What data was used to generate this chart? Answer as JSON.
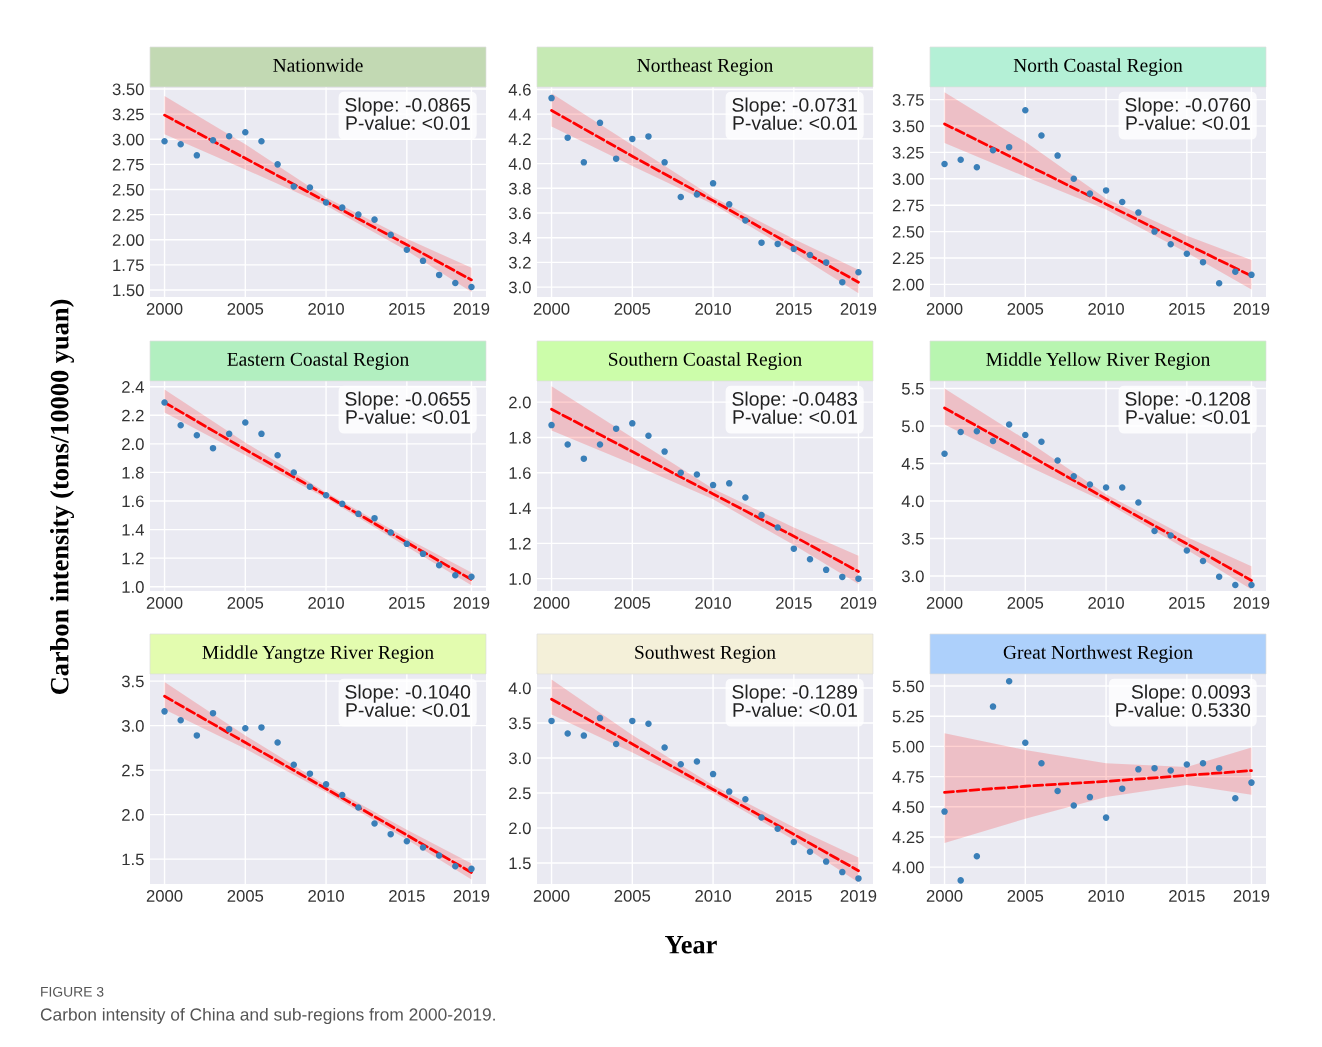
{
  "chart_data": [
    {
      "type": "scatter",
      "title": "Nationwide",
      "x": [
        2000,
        2001,
        2002,
        2003,
        2004,
        2005,
        2006,
        2007,
        2008,
        2009,
        2010,
        2011,
        2012,
        2013,
        2014,
        2015,
        2016,
        2017,
        2018,
        2019
      ],
      "xlim": [
        1999.1,
        2019.9
      ],
      "xticks": [
        2000,
        2005,
        2010,
        2015,
        2019
      ],
      "ylim": [
        1.43,
        3.52
      ],
      "yticks": [
        {
          "value": 1.5,
          "label": "1.50"
        },
        {
          "value": 1.75,
          "label": "1.75"
        },
        {
          "value": 2.0,
          "label": "2.00"
        },
        {
          "value": 2.25,
          "label": "2.25"
        },
        {
          "value": 2.5,
          "label": "2.50"
        },
        {
          "value": 2.75,
          "label": "2.75"
        },
        {
          "value": 3.0,
          "label": "3.00"
        },
        {
          "value": 3.25,
          "label": "3.25"
        },
        {
          "value": 3.5,
          "label": "3.50"
        }
      ],
      "grid": true,
      "marker": "circle",
      "annotations": [
        "Slope: -0.0865\nP-value: <0.01"
      ],
      "series": [
        {
          "color": "#3a7fb8",
          "values": [
            2.98,
            2.95,
            2.84,
            2.99,
            3.03,
            3.07,
            2.98,
            2.75,
            2.53,
            2.52,
            2.37,
            2.32,
            2.25,
            2.2,
            2.05,
            1.9,
            1.79,
            1.65,
            1.57,
            1.53
          ]
        },
        {
          "type": "line",
          "marker": "none",
          "color": "#ff0000",
          "line_style": "dashed",
          "x": [
            2000,
            2005,
            2010,
            2015,
            2019
          ],
          "values": [
            3.24,
            2.81,
            2.38,
            1.95,
            1.6
          ],
          "lower": [
            3.05,
            2.7,
            2.34,
            1.89,
            1.48
          ],
          "upper": [
            3.43,
            2.95,
            2.42,
            2.01,
            1.72
          ]
        }
      ]
    },
    {
      "type": "scatter",
      "title": "Northeast Region",
      "x": [
        2000,
        2001,
        2002,
        2003,
        2004,
        2005,
        2006,
        2007,
        2008,
        2009,
        2010,
        2011,
        2012,
        2013,
        2014,
        2015,
        2016,
        2017,
        2018,
        2019
      ],
      "xlim": [
        1999.1,
        2019.9
      ],
      "xticks": [
        2000,
        2005,
        2010,
        2015,
        2019
      ],
      "ylim": [
        2.92,
        4.62
      ],
      "yticks": [
        {
          "value": 3.0,
          "label": "3.0"
        },
        {
          "value": 3.2,
          "label": "3.2"
        },
        {
          "value": 3.4,
          "label": "3.4"
        },
        {
          "value": 3.6,
          "label": "3.6"
        },
        {
          "value": 3.8,
          "label": "3.8"
        },
        {
          "value": 4.0,
          "label": "4.0"
        },
        {
          "value": 4.2,
          "label": "4.2"
        },
        {
          "value": 4.4,
          "label": "4.4"
        },
        {
          "value": 4.6,
          "label": "4.6"
        }
      ],
      "grid": true,
      "marker": "circle",
      "annotations": [
        "Slope: -0.0731\nP-value: <0.01"
      ],
      "series": [
        {
          "color": "#3a7fb8",
          "values": [
            4.53,
            4.21,
            4.01,
            4.33,
            4.04,
            4.2,
            4.22,
            4.01,
            3.73,
            3.75,
            3.84,
            3.67,
            3.54,
            3.36,
            3.35,
            3.31,
            3.26,
            3.2,
            3.04,
            3.12
          ]
        },
        {
          "type": "line",
          "marker": "none",
          "color": "#ff0000",
          "line_style": "dashed",
          "x": [
            2000,
            2005,
            2010,
            2015,
            2019
          ],
          "values": [
            4.43,
            4.06,
            3.7,
            3.33,
            3.04
          ],
          "lower": [
            4.3,
            3.98,
            3.67,
            3.28,
            2.95
          ],
          "upper": [
            4.57,
            4.15,
            3.73,
            3.39,
            3.14
          ]
        }
      ]
    },
    {
      "type": "scatter",
      "title": "North Coastal Region",
      "x": [
        2000,
        2001,
        2002,
        2003,
        2004,
        2005,
        2006,
        2007,
        2008,
        2009,
        2010,
        2011,
        2012,
        2013,
        2014,
        2015,
        2016,
        2017,
        2018,
        2019
      ],
      "xlim": [
        1999.1,
        2019.9
      ],
      "xticks": [
        2000,
        2005,
        2010,
        2015,
        2019
      ],
      "ylim": [
        1.88,
        3.87
      ],
      "yticks": [
        {
          "value": 2.0,
          "label": "2.00"
        },
        {
          "value": 2.25,
          "label": "2.25"
        },
        {
          "value": 2.5,
          "label": "2.50"
        },
        {
          "value": 2.75,
          "label": "2.75"
        },
        {
          "value": 3.0,
          "label": "3.00"
        },
        {
          "value": 3.25,
          "label": "3.25"
        },
        {
          "value": 3.5,
          "label": "3.50"
        },
        {
          "value": 3.75,
          "label": "3.75"
        }
      ],
      "grid": true,
      "marker": "circle",
      "annotations": [
        "Slope: -0.0760\nP-value: <0.01"
      ],
      "series": [
        {
          "color": "#3a7fb8",
          "values": [
            3.14,
            3.18,
            3.11,
            3.27,
            3.3,
            3.65,
            3.41,
            3.22,
            3.0,
            2.86,
            2.89,
            2.78,
            2.68,
            2.5,
            2.38,
            2.29,
            2.21,
            2.01,
            2.12,
            2.09
          ]
        },
        {
          "type": "line",
          "marker": "none",
          "color": "#ff0000",
          "line_style": "dashed",
          "x": [
            2000,
            2005,
            2010,
            2015,
            2019
          ],
          "values": [
            3.52,
            3.14,
            2.76,
            2.38,
            2.08
          ],
          "lower": [
            3.34,
            3.02,
            2.71,
            2.3,
            1.95
          ],
          "upper": [
            3.82,
            3.35,
            2.81,
            2.46,
            2.23
          ]
        }
      ]
    },
    {
      "type": "scatter",
      "title": "Eastern Coastal Region",
      "ylabel": "Carbon intensity (tons/10000 yuan)",
      "x": [
        2000,
        2001,
        2002,
        2003,
        2004,
        2005,
        2006,
        2007,
        2008,
        2009,
        2010,
        2011,
        2012,
        2013,
        2014,
        2015,
        2016,
        2017,
        2018,
        2019
      ],
      "xlim": [
        1999.1,
        2019.9
      ],
      "xticks": [
        2000,
        2005,
        2010,
        2015,
        2019
      ],
      "ylim": [
        0.97,
        2.44
      ],
      "yticks": [
        {
          "value": 1.0,
          "label": "1.0"
        },
        {
          "value": 1.2,
          "label": "1.2"
        },
        {
          "value": 1.4,
          "label": "1.4"
        },
        {
          "value": 1.6,
          "label": "1.6"
        },
        {
          "value": 1.8,
          "label": "1.8"
        },
        {
          "value": 2.0,
          "label": "2.0"
        },
        {
          "value": 2.2,
          "label": "2.2"
        },
        {
          "value": 2.4,
          "label": "2.4"
        }
      ],
      "grid": true,
      "marker": "circle",
      "annotations": [
        "Slope: -0.0655\nP-value: <0.01"
      ],
      "series": [
        {
          "color": "#3a7fb8",
          "values": [
            2.29,
            2.13,
            2.06,
            1.97,
            2.07,
            2.15,
            2.07,
            1.92,
            1.8,
            1.7,
            1.64,
            1.58,
            1.51,
            1.48,
            1.38,
            1.3,
            1.23,
            1.15,
            1.08,
            1.07
          ]
        },
        {
          "type": "line",
          "marker": "none",
          "color": "#ff0000",
          "line_style": "dashed",
          "x": [
            2000,
            2005,
            2010,
            2015,
            2019
          ],
          "values": [
            2.29,
            1.96,
            1.64,
            1.31,
            1.05
          ],
          "lower": [
            2.22,
            1.92,
            1.62,
            1.28,
            1.01
          ],
          "upper": [
            2.38,
            2.01,
            1.66,
            1.34,
            1.1
          ]
        }
      ]
    },
    {
      "type": "scatter",
      "title": "Southern Coastal Region",
      "x": [
        2000,
        2001,
        2002,
        2003,
        2004,
        2005,
        2006,
        2007,
        2008,
        2009,
        2010,
        2011,
        2012,
        2013,
        2014,
        2015,
        2016,
        2017,
        2018,
        2019
      ],
      "xlim": [
        1999.1,
        2019.9
      ],
      "xticks": [
        2000,
        2005,
        2010,
        2015,
        2019
      ],
      "ylim": [
        0.93,
        2.12
      ],
      "yticks": [
        {
          "value": 1.0,
          "label": "1.0"
        },
        {
          "value": 1.2,
          "label": "1.2"
        },
        {
          "value": 1.4,
          "label": "1.4"
        },
        {
          "value": 1.6,
          "label": "1.6"
        },
        {
          "value": 1.8,
          "label": "1.8"
        },
        {
          "value": 2.0,
          "label": "2.0"
        }
      ],
      "grid": true,
      "marker": "circle",
      "annotations": [
        "Slope: -0.0483\nP-value: <0.01"
      ],
      "series": [
        {
          "color": "#3a7fb8",
          "values": [
            1.87,
            1.76,
            1.68,
            1.76,
            1.85,
            1.88,
            1.81,
            1.72,
            1.6,
            1.59,
            1.53,
            1.54,
            1.46,
            1.36,
            1.29,
            1.17,
            1.11,
            1.05,
            1.01,
            1.0
          ]
        },
        {
          "type": "line",
          "marker": "none",
          "color": "#ff0000",
          "line_style": "dashed",
          "x": [
            2000,
            2005,
            2010,
            2015,
            2019
          ],
          "values": [
            1.96,
            1.72,
            1.48,
            1.24,
            1.04
          ],
          "lower": [
            1.84,
            1.65,
            1.45,
            1.19,
            0.97
          ],
          "upper": [
            2.09,
            1.8,
            1.51,
            1.29,
            1.13
          ]
        }
      ]
    },
    {
      "type": "scatter",
      "title": "Middle Yellow River Region",
      "x": [
        2000,
        2001,
        2002,
        2003,
        2004,
        2005,
        2006,
        2007,
        2008,
        2009,
        2010,
        2011,
        2012,
        2013,
        2014,
        2015,
        2016,
        2017,
        2018,
        2019
      ],
      "xlim": [
        1999.1,
        2019.9
      ],
      "xticks": [
        2000,
        2005,
        2010,
        2015,
        2019
      ],
      "ylim": [
        2.8,
        5.6
      ],
      "yticks": [
        {
          "value": 3.0,
          "label": "3.0"
        },
        {
          "value": 3.5,
          "label": "3.5"
        },
        {
          "value": 4.0,
          "label": "4.0"
        },
        {
          "value": 4.5,
          "label": "4.5"
        },
        {
          "value": 5.0,
          "label": "5.0"
        },
        {
          "value": 5.5,
          "label": "5.5"
        }
      ],
      "grid": true,
      "marker": "circle",
      "annotations": [
        "Slope: -0.1208\nP-value: <0.01"
      ],
      "series": [
        {
          "color": "#3a7fb8",
          "values": [
            4.63,
            4.92,
            4.93,
            4.8,
            5.02,
            4.88,
            4.79,
            4.54,
            4.33,
            4.22,
            4.18,
            4.18,
            3.98,
            3.6,
            3.54,
            3.34,
            3.2,
            2.99,
            2.88,
            2.88
          ]
        },
        {
          "type": "line",
          "marker": "none",
          "color": "#ff0000",
          "line_style": "dashed",
          "x": [
            2000,
            2005,
            2010,
            2015,
            2019
          ],
          "values": [
            5.24,
            4.64,
            4.03,
            3.43,
            2.94
          ],
          "lower": [
            5.02,
            4.48,
            3.98,
            3.35,
            2.82
          ],
          "upper": [
            5.5,
            4.82,
            4.09,
            3.52,
            3.13
          ]
        }
      ]
    },
    {
      "type": "scatter",
      "title": "Middle Yangtze River Region",
      "x": [
        2000,
        2001,
        2002,
        2003,
        2004,
        2005,
        2006,
        2007,
        2008,
        2009,
        2010,
        2011,
        2012,
        2013,
        2014,
        2015,
        2016,
        2017,
        2018,
        2019
      ],
      "xlim": [
        1999.1,
        2019.9
      ],
      "xticks": [
        2000,
        2005,
        2010,
        2015,
        2019
      ],
      "ylim": [
        1.22,
        3.58
      ],
      "yticks": [
        {
          "value": 1.5,
          "label": "1.5"
        },
        {
          "value": 2.0,
          "label": "2.0"
        },
        {
          "value": 2.5,
          "label": "2.5"
        },
        {
          "value": 3.0,
          "label": "3.0"
        },
        {
          "value": 3.5,
          "label": "3.5"
        }
      ],
      "grid": true,
      "marker": "circle",
      "annotations": [
        "Slope: -0.1040\nP-value: <0.01"
      ],
      "series": [
        {
          "color": "#3a7fb8",
          "values": [
            3.16,
            3.06,
            2.89,
            3.14,
            2.96,
            2.97,
            2.98,
            2.81,
            2.56,
            2.46,
            2.34,
            2.22,
            2.08,
            1.9,
            1.78,
            1.7,
            1.63,
            1.54,
            1.42,
            1.39
          ]
        },
        {
          "type": "line",
          "marker": "none",
          "color": "#ff0000",
          "line_style": "dashed",
          "x": [
            2000,
            2005,
            2010,
            2015,
            2019
          ],
          "values": [
            3.33,
            2.81,
            2.29,
            1.77,
            1.35
          ],
          "lower": [
            3.18,
            2.74,
            2.25,
            1.72,
            1.27
          ],
          "upper": [
            3.49,
            2.89,
            2.33,
            1.83,
            1.45
          ]
        }
      ]
    },
    {
      "type": "scatter",
      "title": "Southwest Region",
      "xlabel": "Year",
      "x": [
        2000,
        2001,
        2002,
        2003,
        2004,
        2005,
        2006,
        2007,
        2008,
        2009,
        2010,
        2011,
        2012,
        2013,
        2014,
        2015,
        2016,
        2017,
        2018,
        2019
      ],
      "xlim": [
        1999.1,
        2019.9
      ],
      "xticks": [
        2000,
        2005,
        2010,
        2015,
        2019
      ],
      "ylim": [
        1.2,
        4.2
      ],
      "yticks": [
        {
          "value": 1.5,
          "label": "1.5"
        },
        {
          "value": 2.0,
          "label": "2.0"
        },
        {
          "value": 2.5,
          "label": "2.5"
        },
        {
          "value": 3.0,
          "label": "3.0"
        },
        {
          "value": 3.5,
          "label": "3.5"
        },
        {
          "value": 4.0,
          "label": "4.0"
        }
      ],
      "grid": true,
      "marker": "circle",
      "annotations": [
        "Slope: -0.1289\nP-value: <0.01",
        "FIGURE 3",
        "Carbon intensity of China and sub-regions from 2000-2019."
      ],
      "series": [
        {
          "color": "#3a7fb8",
          "values": [
            3.53,
            3.35,
            3.32,
            3.57,
            3.2,
            3.53,
            3.49,
            3.15,
            2.91,
            2.95,
            2.77,
            2.52,
            2.41,
            2.15,
            1.99,
            1.8,
            1.66,
            1.52,
            1.37,
            1.28
          ]
        },
        {
          "type": "line",
          "marker": "none",
          "color": "#ff0000",
          "line_style": "dashed",
          "x": [
            2000,
            2005,
            2010,
            2015,
            2019
          ],
          "values": [
            3.84,
            3.2,
            2.55,
            1.91,
            1.39
          ],
          "lower": [
            3.62,
            3.08,
            2.5,
            1.83,
            1.22
          ],
          "upper": [
            4.12,
            3.33,
            2.61,
            2.01,
            1.58
          ]
        }
      ]
    },
    {
      "type": "scatter",
      "title": "Great Northwest Region",
      "x": [
        2000,
        2001,
        2002,
        2003,
        2004,
        2005,
        2006,
        2007,
        2008,
        2009,
        2010,
        2011,
        2012,
        2013,
        2014,
        2015,
        2016,
        2017,
        2018,
        2019
      ],
      "xlim": [
        1999.1,
        2019.9
      ],
      "xticks": [
        2000,
        2005,
        2010,
        2015,
        2019
      ],
      "ylim": [
        3.86,
        5.6
      ],
      "yticks": [
        {
          "value": 4.0,
          "label": "4.00"
        },
        {
          "value": 4.25,
          "label": "4.25"
        },
        {
          "value": 4.5,
          "label": "4.50"
        },
        {
          "value": 4.75,
          "label": "4.75"
        },
        {
          "value": 5.0,
          "label": "5.00"
        },
        {
          "value": 5.25,
          "label": "5.25"
        },
        {
          "value": 5.5,
          "label": "5.50"
        }
      ],
      "grid": true,
      "marker": "circle",
      "annotations": [
        "Slope: 0.0093\nP-value: 0.5330"
      ],
      "series": [
        {
          "color": "#3a7fb8",
          "values": [
            4.46,
            3.89,
            4.09,
            5.33,
            5.54,
            5.03,
            4.86,
            4.63,
            4.51,
            4.58,
            4.41,
            4.65,
            4.81,
            4.82,
            4.8,
            4.85,
            4.86,
            4.82,
            4.57,
            4.7
          ]
        },
        {
          "type": "line",
          "marker": "none",
          "color": "#ff0000",
          "line_style": "dashed",
          "x": [
            2000,
            2005,
            2010,
            2015,
            2019
          ],
          "values": [
            4.62,
            4.67,
            4.71,
            4.76,
            4.8
          ],
          "lower": [
            4.2,
            4.4,
            4.58,
            4.68,
            4.6
          ],
          "upper": [
            5.11,
            4.97,
            4.86,
            4.83,
            4.99
          ]
        }
      ]
    }
  ]
}
